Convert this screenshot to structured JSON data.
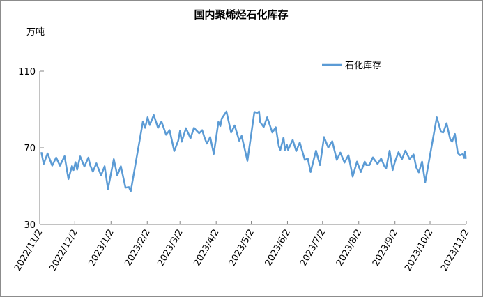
{
  "chart_data": {
    "type": "line",
    "title": "国内聚烯烃石化库存",
    "ylabel": "万吨",
    "xlabel": "",
    "ylim": [
      30,
      110
    ],
    "yticks": [
      "30",
      "70",
      "110"
    ],
    "ytick_values": [
      30,
      70,
      110
    ],
    "x_start_date": "2022/11/2",
    "x_unit": "days since 2022/11/2",
    "xlim": [
      0,
      365
    ],
    "xticks": [
      "2022/11/2",
      "2022/12/2",
      "2023/1/2",
      "2023/2/2",
      "2023/3/2",
      "2023/4/2",
      "2023/5/2",
      "2023/6/2",
      "2023/7/2",
      "2023/8/2",
      "2023/9/2",
      "2023/10/2",
      "2023/11/2"
    ],
    "xtick_values": [
      0,
      30,
      61,
      92,
      120,
      151,
      181,
      212,
      242,
      273,
      304,
      334,
      365
    ],
    "grid": false,
    "legend_position": "top-right",
    "series": [
      {
        "name": "石化库存",
        "color": "#5b9bd5",
        "x": [
          1.4,
          3.4,
          6.7,
          10.7,
          14.1,
          17.3,
          21.3,
          24.6,
          27.6,
          29.0,
          30.6,
          32.0,
          34.6,
          38.2,
          41.6,
          43.1,
          45.5,
          48.5,
          52.5,
          55.5,
          58.4,
          63.4,
          66.4,
          69.4,
          73.4,
          76.3,
          77.9,
          88.3,
          90.2,
          92.3,
          94.2,
          97.6,
          101.2,
          104.2,
          108.1,
          111.1,
          115.1,
          118.5,
          120.1,
          121.5,
          125.1,
          129.0,
          132.0,
          136.4,
          139.0,
          140.9,
          143.0,
          145.9,
          148.9,
          152.9,
          154.5,
          155.8,
          159.8,
          163.8,
          166.8,
          170.7,
          172.8,
          177.7,
          183.7,
          186.2,
          187.7,
          188.6,
          191.6,
          194.6,
          199.0,
          202.0,
          204.6,
          205.9,
          208.6,
          209.9,
          211.5,
          212.5,
          216.5,
          219.5,
          222.5,
          226.8,
          229.4,
          231.8,
          236.4,
          239.8,
          243.3,
          246.9,
          250.3,
          254.2,
          257.2,
          260.8,
          264.2,
          267.8,
          271.5,
          274.8,
          278.1,
          279.5,
          282.1,
          285.1,
          289.1,
          292.1,
          295.0,
          296.4,
          299.4,
          302.0,
          304.0,
          307.0,
          310.0,
          312.9,
          316.5,
          319.9,
          322.2,
          324.3,
          327.2,
          329.8,
          339.8,
          343.3,
          345.3,
          348.1,
          351.3,
          352.9,
          355.3,
          357.7,
          359.6,
          362.0,
          363.2,
          364.0,
          364.6
        ],
        "values": [
          67.7,
          61.6,
          67.1,
          60.7,
          64.9,
          60.7,
          65.6,
          53.7,
          60.5,
          58.4,
          62.5,
          58.6,
          65.5,
          60.2,
          64.9,
          61.0,
          57.6,
          61.9,
          55.6,
          60.4,
          48.5,
          64.1,
          55.6,
          60.4,
          49.2,
          49.5,
          47.3,
          83.8,
          80.4,
          85.9,
          81.9,
          87.1,
          80.4,
          83.7,
          76.8,
          79.2,
          68.3,
          73.7,
          79.0,
          73.2,
          80.2,
          75.0,
          80.4,
          77.6,
          79.2,
          75.6,
          72.2,
          75.6,
          66.8,
          83.5,
          81.3,
          85.3,
          88.9,
          78.0,
          81.6,
          73.7,
          76.2,
          63.2,
          88.7,
          88.3,
          88.9,
          83.5,
          80.8,
          85.9,
          78.0,
          80.7,
          70.7,
          68.9,
          75.3,
          68.9,
          71.6,
          68.9,
          74.1,
          68.3,
          72.8,
          63.7,
          64.4,
          57.4,
          68.5,
          61.0,
          75.6,
          70.1,
          73.4,
          63.7,
          67.5,
          62.3,
          66.1,
          55.0,
          62.8,
          57.4,
          62.8,
          61.0,
          61.0,
          65.0,
          61.6,
          64.4,
          60.4,
          59.2,
          68.5,
          58.4,
          62.8,
          67.7,
          64.1,
          68.5,
          64.1,
          66.5,
          59.8,
          57.2,
          62.8,
          51.9,
          85.9,
          78.4,
          78.0,
          82.8,
          74.4,
          73.2,
          77.2,
          67.3,
          66.1,
          66.7,
          64.7,
          68.1,
          64.3
        ]
      }
    ]
  }
}
